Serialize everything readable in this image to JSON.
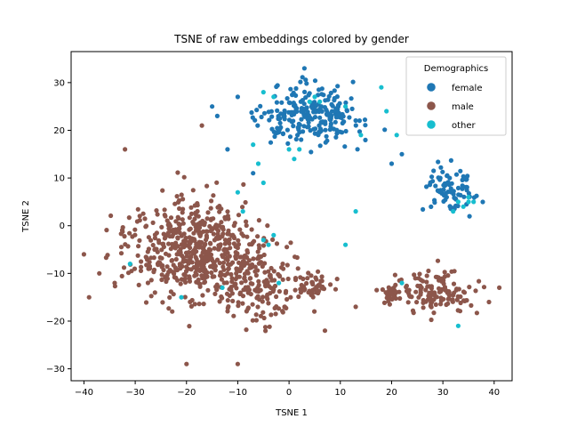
{
  "chart_data": {
    "type": "scatter",
    "title": "TSNE of raw embeddings colored by gender",
    "xlabel": "TSNE 1",
    "ylabel": "TSNE 2",
    "xlim": [
      -42.5,
      43.5
    ],
    "ylim": [
      -32.5,
      36.5
    ],
    "xticks": [
      -40,
      -30,
      -20,
      -10,
      0,
      10,
      20,
      30,
      40
    ],
    "yticks": [
      -30,
      -20,
      -10,
      0,
      10,
      20,
      30
    ],
    "grid": false,
    "legend": {
      "title": "Demographics",
      "placement": "top-right"
    },
    "series": [
      {
        "name": "female",
        "color": "#1f77b4",
        "clusters": [
          {
            "cx": 4,
            "cy": 23,
            "sx": 9,
            "sy": 5,
            "n": 230
          },
          {
            "cx": 31,
            "cy": 8,
            "sx": 4.5,
            "sy": 4,
            "n": 80
          }
        ],
        "points": [
          [
            -15,
            25
          ],
          [
            -14,
            23
          ],
          [
            -10,
            27
          ],
          [
            3,
            33
          ],
          [
            -7,
            11
          ],
          [
            -12,
            16
          ],
          [
            20,
            13
          ],
          [
            22,
            15
          ]
        ]
      },
      {
        "name": "male",
        "color": "#8c564b",
        "clusters": [
          {
            "cx": -18,
            "cy": -5,
            "sx": 11,
            "sy": 9,
            "n": 560
          },
          {
            "cx": -5,
            "cy": -12,
            "sx": 8,
            "sy": 8,
            "n": 160
          },
          {
            "cx": 5,
            "cy": -13,
            "sx": 3,
            "sy": 2,
            "n": 40
          },
          {
            "cx": 29,
            "cy": -14,
            "sx": 6,
            "sy": 3.5,
            "n": 130
          },
          {
            "cx": 20,
            "cy": -14,
            "sx": 2,
            "sy": 2,
            "n": 30
          }
        ],
        "points": [
          [
            -40,
            -6
          ],
          [
            -39,
            -15
          ],
          [
            -37,
            -10
          ],
          [
            -34,
            -12
          ],
          [
            41,
            -13
          ],
          [
            39,
            -16
          ],
          [
            -20,
            -29
          ],
          [
            -10,
            -29
          ],
          [
            -17,
            21
          ],
          [
            -32,
            16
          ],
          [
            13,
            -17
          ],
          [
            7,
            -22
          ]
        ]
      },
      {
        "name": "other",
        "color": "#17becf",
        "clusters": [],
        "points": [
          [
            -5,
            28
          ],
          [
            -3,
            27
          ],
          [
            4,
            26
          ],
          [
            5,
            27
          ],
          [
            6,
            26
          ],
          [
            -7,
            17
          ],
          [
            0,
            16
          ],
          [
            2,
            16
          ],
          [
            -6,
            13
          ],
          [
            1,
            14
          ],
          [
            11,
            25
          ],
          [
            14,
            19
          ],
          [
            18,
            29
          ],
          [
            19,
            24
          ],
          [
            21,
            19
          ],
          [
            -10,
            7
          ],
          [
            -5,
            9
          ],
          [
            -9,
            3
          ],
          [
            13,
            3
          ],
          [
            -3,
            -2
          ],
          [
            -4,
            -4
          ],
          [
            -5,
            -3
          ],
          [
            11,
            -4
          ],
          [
            -2,
            -12
          ],
          [
            -21,
            -15
          ],
          [
            -31,
            -8
          ],
          [
            -13,
            -13
          ],
          [
            22,
            -12
          ],
          [
            33,
            -21
          ],
          [
            32,
            3
          ],
          [
            33,
            5
          ],
          [
            35,
            5
          ],
          [
            35,
            6
          ],
          [
            34,
            4
          ],
          [
            36,
            5
          ]
        ]
      }
    ]
  }
}
